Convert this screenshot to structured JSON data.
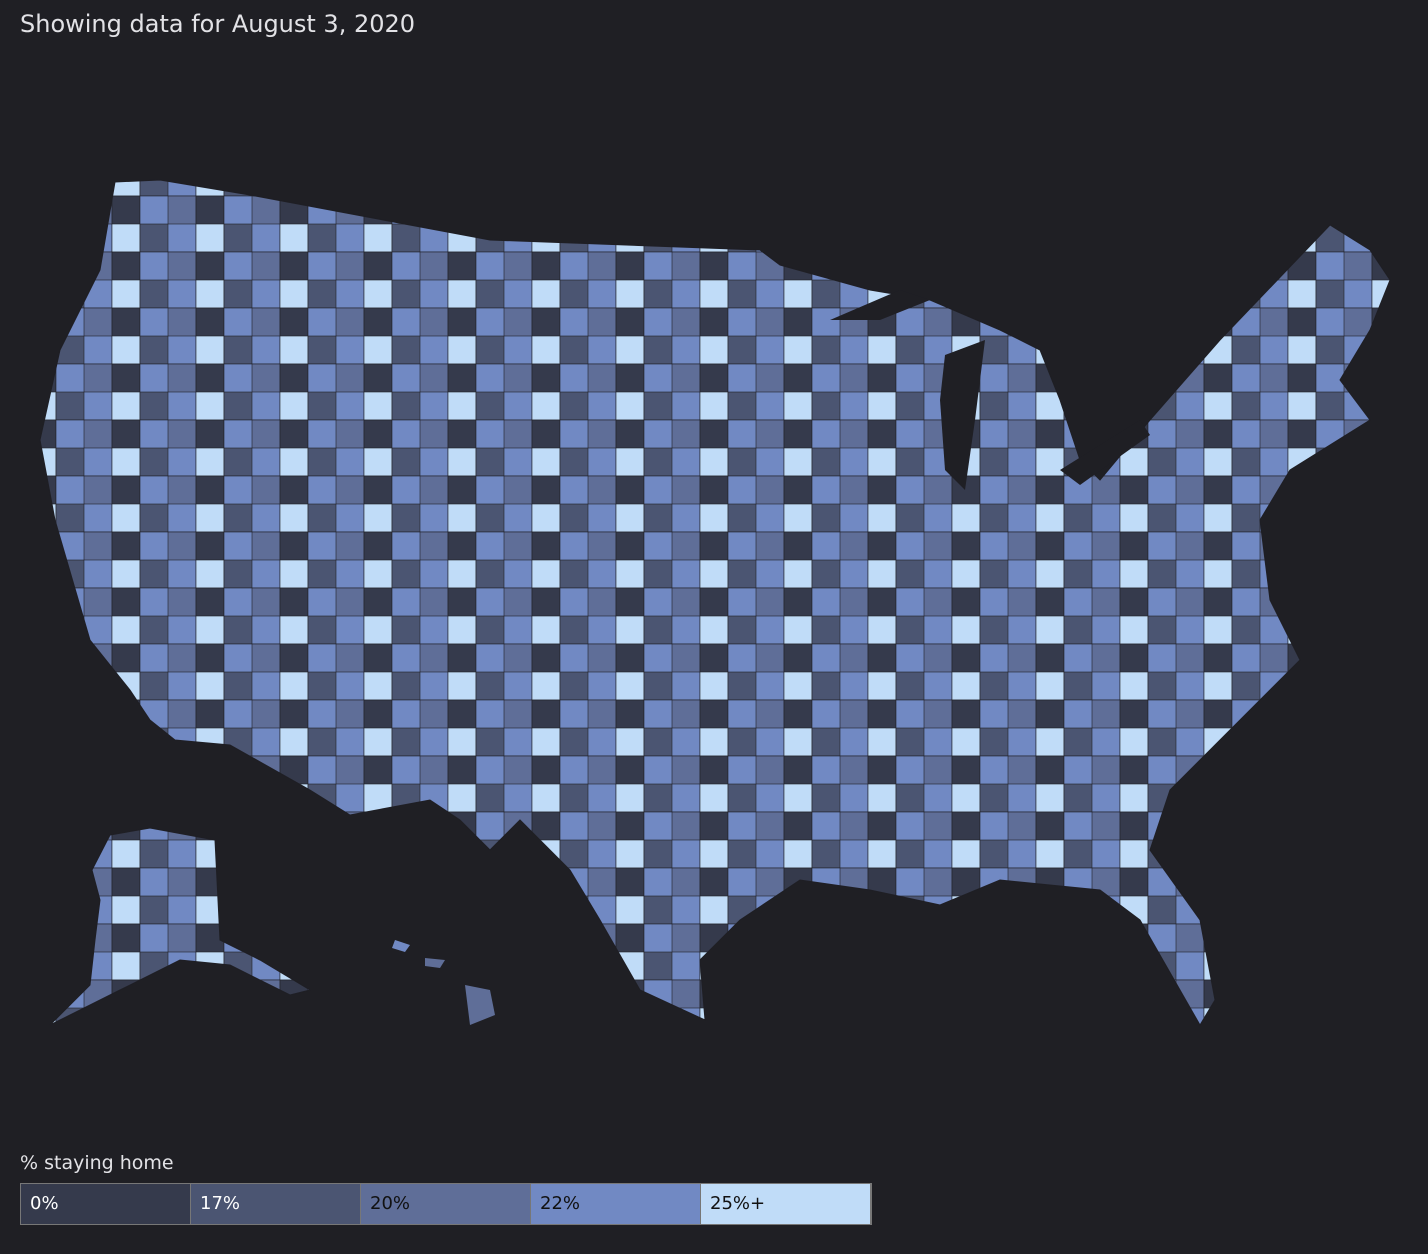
{
  "header": {
    "title": "Showing data for August 3, 2020"
  },
  "legend": {
    "title": "% staying home",
    "bins": [
      {
        "label": "0%",
        "color": "#353a4c",
        "text_color": "#ffffff"
      },
      {
        "label": "17%",
        "color": "#4b5572",
        "text_color": "#ffffff"
      },
      {
        "label": "20%",
        "color": "#5f6e98",
        "text_color": "#111111"
      },
      {
        "label": "22%",
        "color": "#7189c3",
        "text_color": "#111111"
      },
      {
        "label": "25%+",
        "color": "#c0dcf8",
        "text_color": "#111111"
      }
    ]
  }
}
